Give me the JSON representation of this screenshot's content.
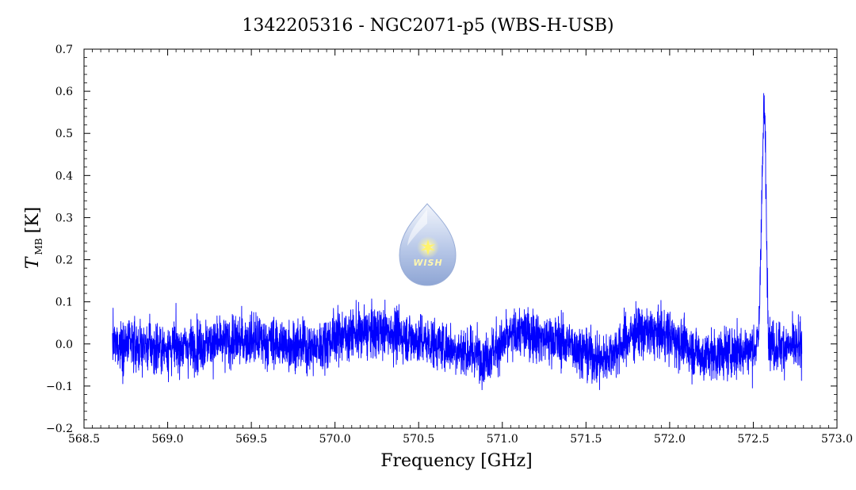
{
  "chart_data": {
    "type": "line",
    "title": "1342205316 - NGC2071-p5 (WBS-H-USB)",
    "xlabel": "Frequency [GHz]",
    "ylabel_symbol": "T",
    "ylabel_subscript": "MB",
    "ylabel_unit": "[K]",
    "xlim": [
      568.5,
      573.0
    ],
    "ylim": [
      -0.2,
      0.7
    ],
    "x_ticks": [
      "568.5",
      "569.0",
      "569.5",
      "570.0",
      "570.5",
      "571.0",
      "571.5",
      "572.0",
      "572.5",
      "573.0"
    ],
    "y_ticks": [
      "−0.2",
      "−0.1",
      "0.0",
      "0.1",
      "0.2",
      "0.3",
      "0.4",
      "0.5",
      "0.6",
      "0.7"
    ],
    "grid": false,
    "series": [
      {
        "color": "#0000ff",
        "x_range": [
          568.67,
          572.79
        ],
        "noise_rms_K": 0.035,
        "baseline": [
          [
            568.67,
            0.0
          ],
          [
            569.0,
            -0.01
          ],
          [
            569.5,
            0.01
          ],
          [
            569.9,
            -0.01
          ],
          [
            570.0,
            0.02
          ],
          [
            570.3,
            0.03
          ],
          [
            570.6,
            0.0
          ],
          [
            570.9,
            -0.03
          ],
          [
            571.1,
            0.03
          ],
          [
            571.4,
            0.0
          ],
          [
            571.6,
            -0.04
          ],
          [
            571.8,
            0.03
          ],
          [
            572.0,
            0.02
          ],
          [
            572.2,
            -0.03
          ],
          [
            572.5,
            -0.01
          ],
          [
            572.53,
            0.0
          ],
          [
            572.79,
            -0.01
          ]
        ],
        "peaks": [
          {
            "center": 572.565,
            "amplitude": 0.55,
            "width": 0.012
          },
          {
            "center": 572.545,
            "amplitude": 0.12,
            "width": 0.006
          }
        ]
      }
    ]
  },
  "logo": {
    "text": "WISH",
    "colors": {
      "drop_top": "#eef3fb",
      "drop_bottom": "#8fa7d6",
      "star": "#fff36b"
    }
  }
}
